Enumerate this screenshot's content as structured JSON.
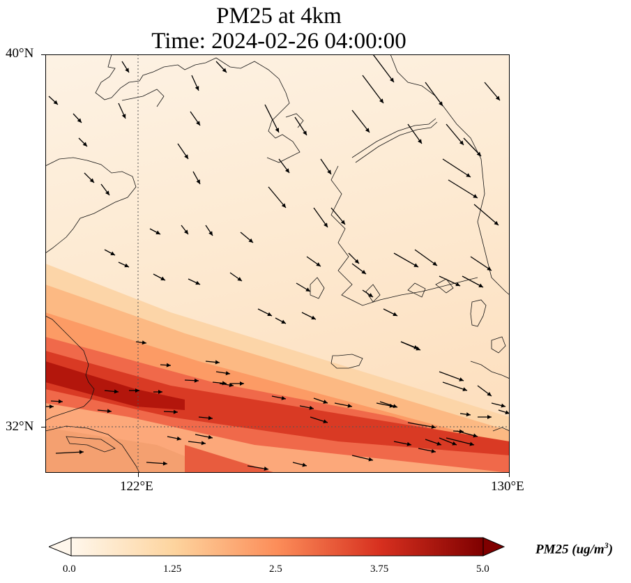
{
  "title": {
    "line1": "PM25 at 4km",
    "line2": "Time: 2024-02-26 04:00:00"
  },
  "map": {
    "lat_labels": [
      "40°N",
      "32°N"
    ],
    "lon_labels": [
      "122°E",
      "130°E"
    ],
    "extent": {
      "lon": [
        120,
        130
      ],
      "lat": [
        31,
        40
      ]
    },
    "gridlines": {
      "lons": [
        122,
        130
      ],
      "lats": [
        32,
        40
      ],
      "style": "dotted"
    },
    "field_colormap": "OrRd",
    "land_background": "#fdf0df"
  },
  "colorbar": {
    "tick_labels": [
      "0.0",
      "1.25",
      "2.5",
      "3.75",
      "5.0"
    ],
    "range": [
      0,
      5
    ],
    "label": "PM25 (ug/m",
    "label_sup": "3",
    "label_end": ")",
    "extend": "both",
    "colors": [
      "#fff7ec",
      "#fdd49e",
      "#fc8d59",
      "#d7301f",
      "#7f0000"
    ]
  }
}
